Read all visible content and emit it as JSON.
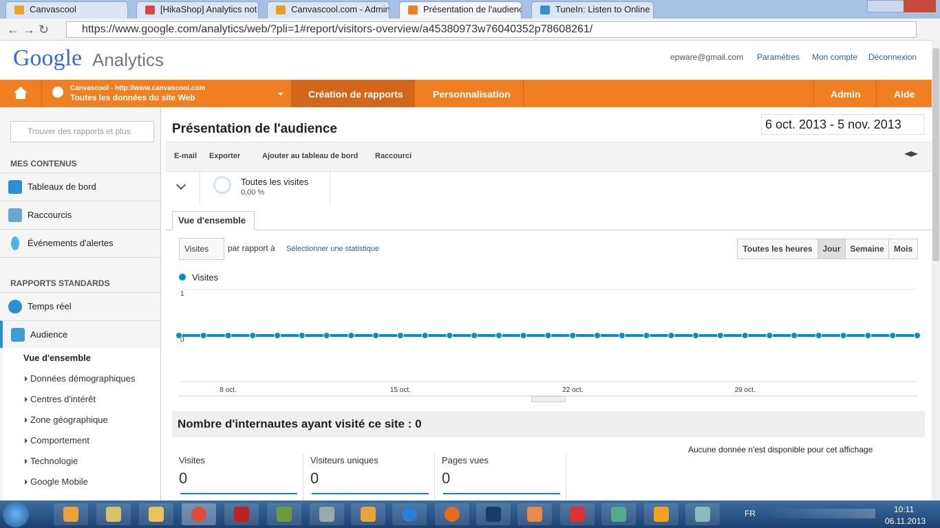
{
  "browser": {
    "tabs": [
      "Canvascool",
      "[HikaShop] Analytics not",
      "Canvascool.com - Admini",
      "Présentation de l'audience",
      "TuneIn: Listen to Online R"
    ],
    "url": "https://www.google.com/analytics/web/?pli=1#report/visitors-overview/a45380973w76040352p78608261/"
  },
  "header": {
    "logo_google": "Google",
    "logo_analytics": "Analytics",
    "email": "epware@gmail.com",
    "links": [
      "Paramètres",
      "Mon compte",
      "Déconnexion"
    ]
  },
  "nav": {
    "site_name": "Canvascool - http://www.canvascool.com",
    "site_view": "Toutes les données du site Web",
    "tabs": [
      "Création de rapports",
      "Personnalisation"
    ],
    "right": [
      "Admin",
      "Aide"
    ]
  },
  "sidebar": {
    "search_placeholder": "Trouver des rapports et plus",
    "section_1": "MES CONTENUS",
    "items_1": [
      "Tableaux de bord",
      "Raccourcis",
      "Événements d'alertes"
    ],
    "section_2": "RAPPORTS STANDARDS",
    "items_2": [
      "Temps réel",
      "Audience"
    ],
    "active": "Vue d'ensemble",
    "sub_items": [
      "Données démographiques",
      "Centres d'intérêt",
      "Zone géographique",
      "Comportement",
      "Technologie",
      "Google Mobile"
    ]
  },
  "report": {
    "title": "Présentation de l'audience",
    "date_range": "6 oct. 2013 - 5 nov. 2013",
    "actions": [
      "E-mail",
      "Exporter",
      "Ajouter au tableau de bord",
      "Raccourci"
    ],
    "segment_name": "Toutes les visites",
    "segment_pct": "0,00 %",
    "tab": "Vue d'ensemble",
    "metric": "Visites",
    "compare": "par rapport à",
    "select": "Sélectionner une statistique",
    "granularity": [
      "Toutes les heures",
      "Jour",
      "Semaine",
      "Mois"
    ],
    "summary_title": "Nombre d'internautes ayant visité ce site : 0",
    "no_data": "Aucune donnée n'est disponible pour cet affichage",
    "metrics": [
      {
        "name": "Visites",
        "value": 0
      },
      {
        "name": "Visiteurs uniques",
        "value": 0
      },
      {
        "name": "Pages vues",
        "value": 0
      }
    ]
  },
  "chart_data": {
    "type": "line",
    "categories": [
      null,
      null,
      "8 oct.",
      null,
      null,
      null,
      null,
      null,
      null,
      "15 oct.",
      null,
      null,
      null,
      null,
      null,
      null,
      "22 oct.",
      null,
      null,
      null,
      null,
      null,
      null,
      "29 oct.",
      null,
      null,
      null,
      null,
      null,
      null,
      null
    ],
    "series": [
      {
        "name": "Visites",
        "color": "#058dc7",
        "values": [
          0,
          0,
          0,
          0,
          0,
          0,
          0,
          0,
          0,
          0,
          0,
          0,
          0,
          0,
          0,
          0,
          0,
          0,
          0,
          0,
          0,
          0,
          0,
          0,
          0,
          0,
          0,
          0,
          0,
          0,
          0
        ]
      }
    ],
    "ylim": [
      0,
      1
    ],
    "yticks": [
      0,
      1
    ],
    "grid": true
  },
  "taskbar": {
    "lang": "FR",
    "time": "10:11",
    "date": "06.11.2013"
  }
}
